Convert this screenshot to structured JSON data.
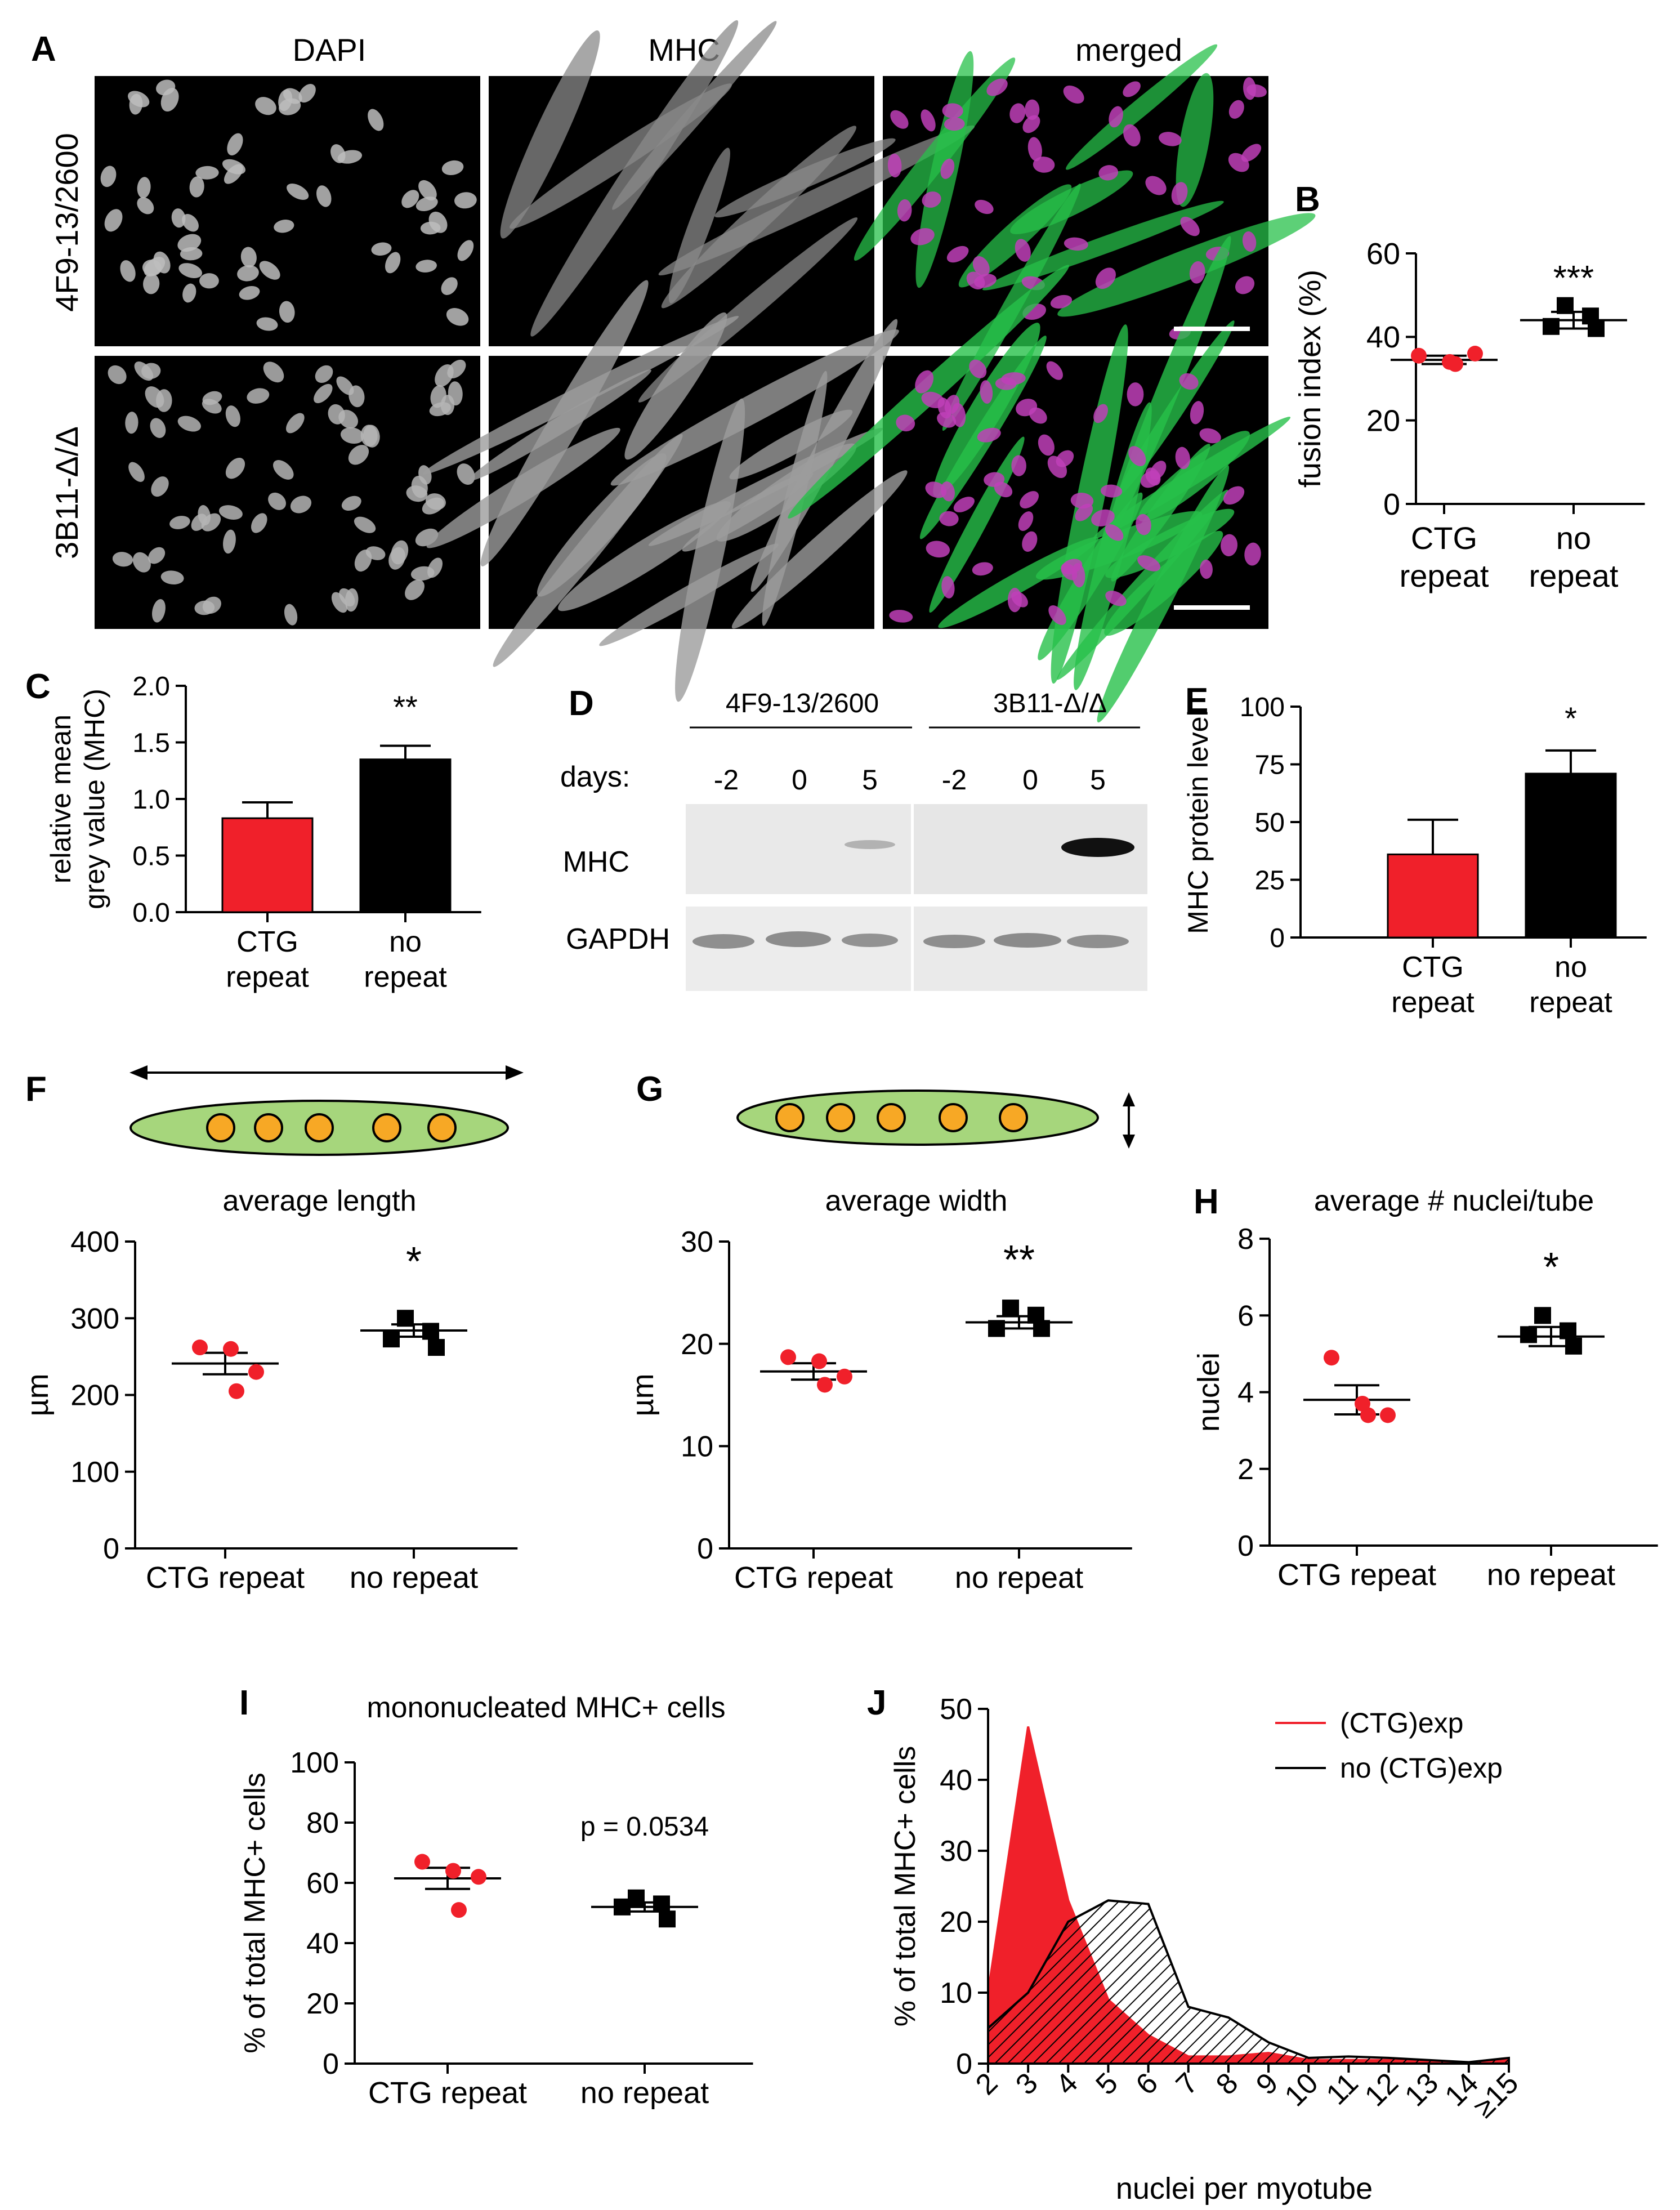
{
  "panel_letters": {
    "A": "A",
    "B": "B",
    "C": "C",
    "D": "D",
    "E": "E",
    "F": "F",
    "G": "G",
    "H": "H",
    "I": "I",
    "J": "J"
  },
  "panelA": {
    "columns": [
      "DAPI",
      "MHC",
      "merged"
    ],
    "rows": [
      "4F9-13/2600",
      "3B11-Δ/Δ"
    ]
  },
  "panelD": {
    "groups": [
      "4F9-13/2600",
      "3B11-Δ/Δ"
    ],
    "days_label": "days:",
    "days": [
      "-2",
      "0",
      "5",
      "-2",
      "0",
      "5"
    ],
    "bands": [
      "MHC",
      "GAPDH"
    ]
  },
  "schematics": {
    "nuclei_color": "#f7a825",
    "cell_color": "#a6d67c"
  },
  "colors": {
    "ctg": "#f0202a",
    "norepeat": "#000000",
    "dapi_nuclei": "#d8d8d8",
    "mhc_green": "#27c04a",
    "nuclei_magenta": "#c040b8"
  },
  "chart_data": [
    {
      "id": "B",
      "type": "scatter",
      "title": "",
      "ylabel": "fusion index (%)",
      "ylim": [
        0,
        60
      ],
      "yticks": [
        "0",
        "20",
        "40",
        "60"
      ],
      "categories": [
        "CTG\nrepeat",
        "no\nrepeat"
      ],
      "groups": [
        {
          "name": "CTG repeat",
          "values": [
            35.5,
            34,
            36,
            33.5
          ],
          "mean": 34.5,
          "sem": 1.0
        },
        {
          "name": "no repeat",
          "values": [
            47.5,
            45,
            42.5,
            42
          ],
          "mean": 44,
          "sem": 2.0
        }
      ],
      "annotation": "***"
    },
    {
      "id": "C",
      "type": "bar",
      "title": "",
      "ylabel": "relative mean\ngrey value (MHC)",
      "ylim": [
        0,
        2.0
      ],
      "yticks": [
        "0.0",
        "0.5",
        "1.0",
        "1.5",
        "2.0"
      ],
      "categories": [
        "CTG\nrepeat",
        "no\nrepeat"
      ],
      "values": [
        0.83,
        1.35
      ],
      "errors": [
        0.14,
        0.12
      ],
      "annotation": "**"
    },
    {
      "id": "E",
      "type": "bar",
      "title": "",
      "ylabel": "MHC protein level",
      "ylim": [
        0,
        100
      ],
      "yticks": [
        "0",
        "25",
        "50",
        "75",
        "100"
      ],
      "categories": [
        "CTG\nrepeat",
        "no\nrepeat"
      ],
      "values": [
        36,
        71
      ],
      "errors": [
        15,
        10
      ],
      "annotation": "*"
    },
    {
      "id": "F",
      "type": "scatter",
      "title": "average length",
      "ylabel": "µm",
      "ylim": [
        0,
        400
      ],
      "yticks": [
        "0",
        "100",
        "200",
        "300",
        "400"
      ],
      "categories": [
        "CTG repeat",
        "no repeat"
      ],
      "groups": [
        {
          "name": "CTG repeat",
          "values": [
            262,
            260,
            230,
            205
          ],
          "mean": 241,
          "sem": 14
        },
        {
          "name": "no repeat",
          "values": [
            300,
            283,
            273,
            262
          ],
          "mean": 284,
          "sem": 8
        }
      ],
      "annotation": "*"
    },
    {
      "id": "G",
      "type": "scatter",
      "title": "average width",
      "ylabel": "µm",
      "ylim": [
        0,
        30
      ],
      "yticks": [
        "0",
        "10",
        "20",
        "30"
      ],
      "categories": [
        "CTG repeat",
        "no repeat"
      ],
      "groups": [
        {
          "name": "CTG repeat",
          "values": [
            18.7,
            18.3,
            16.8,
            16.0
          ],
          "mean": 17.3,
          "sem": 0.8
        },
        {
          "name": "no repeat",
          "values": [
            23.5,
            22.8,
            21.5,
            21.5
          ],
          "mean": 22.1,
          "sem": 0.6
        }
      ],
      "annotation": "**"
    },
    {
      "id": "H",
      "type": "scatter",
      "title": "average # nuclei/tube",
      "ylabel": "nuclei",
      "ylim": [
        0,
        8
      ],
      "yticks": [
        "0",
        "2",
        "4",
        "6",
        "8"
      ],
      "categories": [
        "CTG repeat",
        "no repeat"
      ],
      "groups": [
        {
          "name": "CTG repeat",
          "values": [
            4.9,
            3.7,
            3.4,
            3.4
          ],
          "mean": 3.8,
          "sem": 0.38
        },
        {
          "name": "no repeat",
          "values": [
            6.0,
            5.6,
            5.5,
            5.2
          ],
          "mean": 5.45,
          "sem": 0.25
        }
      ],
      "annotation": "*"
    },
    {
      "id": "I",
      "type": "scatter",
      "title": "mononucleated MHC+ cells",
      "ylabel": "% of total MHC+ cells",
      "ylim": [
        0,
        100
      ],
      "yticks": [
        "0",
        "20",
        "40",
        "60",
        "80",
        "100"
      ],
      "categories": [
        "CTG repeat",
        "no repeat"
      ],
      "groups": [
        {
          "name": "CTG repeat",
          "values": [
            67,
            64,
            62,
            51
          ],
          "mean": 61.5,
          "sem": 3.5
        },
        {
          "name": "no repeat",
          "values": [
            55,
            53,
            52,
            48
          ],
          "mean": 52,
          "sem": 1.5
        }
      ],
      "annotation": "p = 0.0534"
    },
    {
      "id": "J",
      "type": "area",
      "title": "",
      "ylabel": "% of total MHC+ cells",
      "xlabel": "nuclei per myotube",
      "ylim": [
        0,
        50
      ],
      "yticks": [
        "0",
        "10",
        "20",
        "30",
        "40",
        "50"
      ],
      "categories": [
        "2",
        "3",
        "4",
        "5",
        "6",
        "7",
        "8",
        "9",
        "10",
        "11",
        "12",
        "13",
        "14",
        "≥15"
      ],
      "series": [
        {
          "name": "(CTG)exp",
          "values": [
            10,
            47.5,
            23,
            9,
            4,
            1,
            1,
            1.5,
            0.5,
            0.5,
            0.5,
            0.3,
            0.1,
            0.5
          ]
        },
        {
          "name": "no (CTG)exp",
          "values": [
            5,
            10,
            20,
            23,
            22.5,
            8,
            6.5,
            3,
            0.8,
            1.0,
            0.8,
            0.5,
            0.2,
            0.8
          ]
        }
      ],
      "legend_position": "top-right"
    }
  ]
}
